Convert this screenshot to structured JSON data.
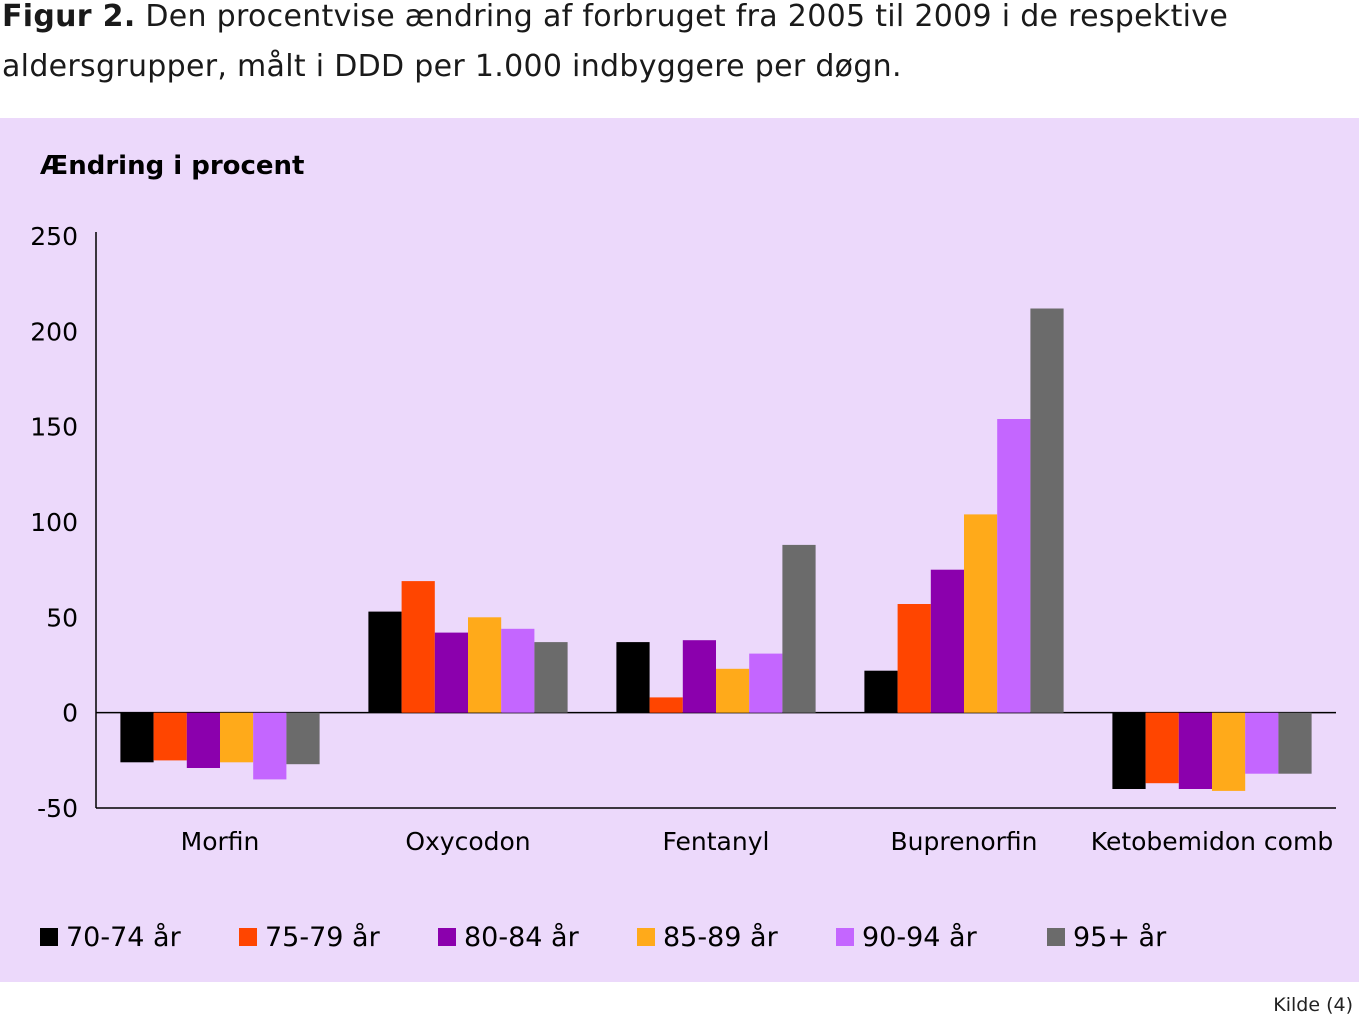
{
  "caption": {
    "label": "Figur 2.",
    "text": "Den procentvise ændring af forbruget fra 2005 til 2009 i de respektive aldersgrupper, målt i DDD per 1.000 indbyggere per døgn."
  },
  "source": "Kilde (4)",
  "chart_data": {
    "type": "bar",
    "title": "",
    "ylabel": "Ændring i procent",
    "xlabel": "",
    "ylim": [
      -50,
      250
    ],
    "yticks": [
      250,
      200,
      150,
      100,
      50,
      0,
      -50
    ],
    "grid": false,
    "legend_position": "bottom",
    "categories": [
      "Morfin",
      "Oxycodon",
      "Fentanyl",
      "Buprenorfin",
      "Ketobemidon comb"
    ],
    "series": [
      {
        "name": "70-74 år",
        "color": "#000000",
        "values": [
          -26,
          53,
          37,
          22,
          -40
        ]
      },
      {
        "name": "75-79 år",
        "color": "#ff4500",
        "values": [
          -25,
          69,
          8,
          57,
          -37
        ]
      },
      {
        "name": "80-84 år",
        "color": "#8b00ad",
        "values": [
          -29,
          42,
          38,
          75,
          -40
        ]
      },
      {
        "name": "85-89 år",
        "color": "#ffaa1a",
        "values": [
          -26,
          50,
          23,
          104,
          -41
        ]
      },
      {
        "name": "90-94 år",
        "color": "#c466ff",
        "values": [
          -35,
          44,
          31,
          154,
          -32
        ]
      },
      {
        "name": "95+ år",
        "color": "#6b6b6b",
        "values": [
          -27,
          37,
          88,
          212,
          -32
        ]
      }
    ]
  }
}
